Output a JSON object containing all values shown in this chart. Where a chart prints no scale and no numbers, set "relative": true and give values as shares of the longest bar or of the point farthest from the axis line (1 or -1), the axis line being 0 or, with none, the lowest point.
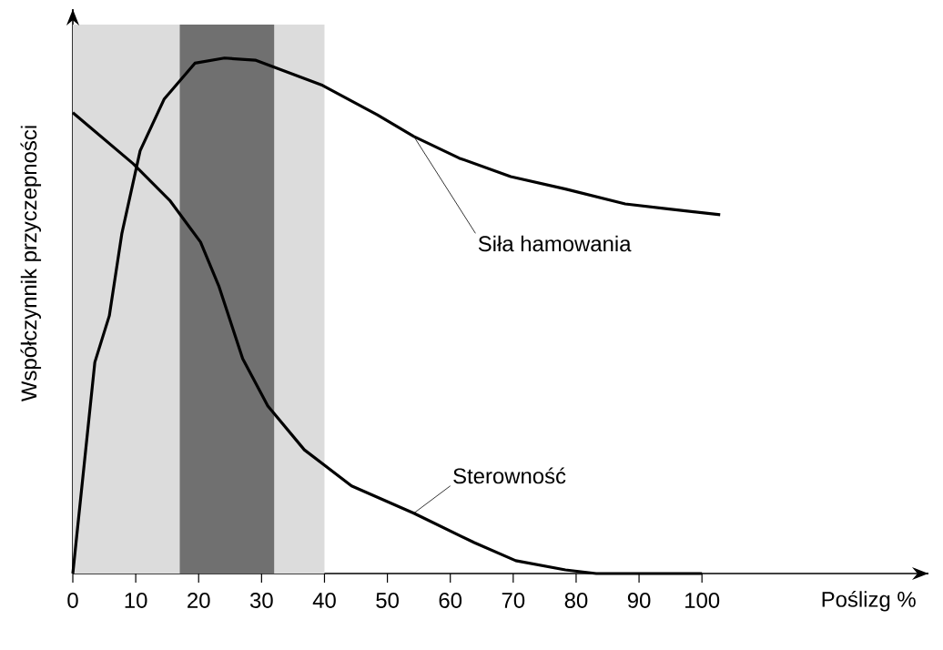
{
  "chart_data": {
    "type": "line",
    "relative": true,
    "xlabel": "Poślizg %",
    "ylabel": "Współczynnik przyczepności",
    "xlim": [
      0,
      136
    ],
    "xticks": [
      0,
      10,
      20,
      30,
      40,
      50,
      60,
      70,
      80,
      90,
      100
    ],
    "grid": false,
    "marker": "none",
    "line_style": "solid",
    "bands": [
      {
        "axis": "x",
        "from": 0,
        "to": 40,
        "color": "#dcdcdc"
      },
      {
        "axis": "x",
        "from": 17,
        "to": 32,
        "color": "#707070"
      }
    ],
    "series": [
      {
        "name": "Siła hamowania",
        "color": "#000000",
        "x": [
          0,
          3.5,
          5.8,
          7.8,
          10.7,
          14.5,
          19.4,
          24.1,
          29,
          39.7,
          48.4,
          54.2,
          61.4,
          69.6,
          78.3,
          87.8,
          94.8,
          102.9
        ],
        "values": [
          0,
          0.41,
          0.5,
          0.66,
          0.82,
          0.92,
          0.99,
          1.0,
          0.996,
          0.947,
          0.89,
          0.848,
          0.806,
          0.77,
          0.746,
          0.717,
          0.707,
          0.696
        ]
      },
      {
        "name": "Sterowność",
        "color": "#000000",
        "x": [
          0,
          9.6,
          15.4,
          20.3,
          23.2,
          27,
          31,
          36.8,
          44.3,
          54.2,
          63.8,
          70.4,
          78.3,
          83.2,
          100
        ],
        "values": [
          0.894,
          0.795,
          0.724,
          0.643,
          0.558,
          0.417,
          0.325,
          0.24,
          0.17,
          0.117,
          0.06,
          0.025,
          0.007,
          0,
          0
        ]
      }
    ]
  }
}
